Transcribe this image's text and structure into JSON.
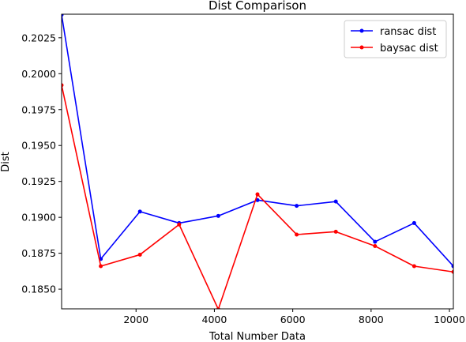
{
  "chart_data": {
    "type": "line",
    "title": "Dist Comparison",
    "xlabel": "Total Number Data",
    "ylabel": "Dist",
    "xlim": [
      100,
      10100
    ],
    "ylim": [
      0.18363,
      0.20414
    ],
    "grid": false,
    "legend_position": "top-right",
    "x": [
      100,
      1100,
      2100,
      3100,
      4100,
      5100,
      6100,
      7100,
      8100,
      9100,
      10100
    ],
    "xticks": [
      2000,
      4000,
      6000,
      8000,
      10000
    ],
    "xtick_labels": [
      "2000",
      "4000",
      "6000",
      "8000",
      "10000"
    ],
    "yticks": [
      0.185,
      0.1875,
      0.19,
      0.1925,
      0.195,
      0.1975,
      0.2,
      0.2025
    ],
    "ytick_labels": [
      "0.1850",
      "0.1875",
      "0.1900",
      "0.1925",
      "0.1950",
      "0.1975",
      "0.2000",
      "0.2025"
    ],
    "series": [
      {
        "name": "ransac dist",
        "color": "#0000ff",
        "values": [
          0.2041,
          0.1871,
          0.1904,
          0.1896,
          0.1901,
          0.1912,
          0.1908,
          0.1911,
          0.1883,
          0.1896,
          0.1866
        ]
      },
      {
        "name": "baysac dist",
        "color": "#ff0000",
        "values": [
          0.1992,
          0.1866,
          0.1874,
          0.1895,
          0.1836,
          0.1916,
          0.1888,
          0.189,
          0.188,
          0.1866,
          0.1862
        ]
      }
    ]
  }
}
